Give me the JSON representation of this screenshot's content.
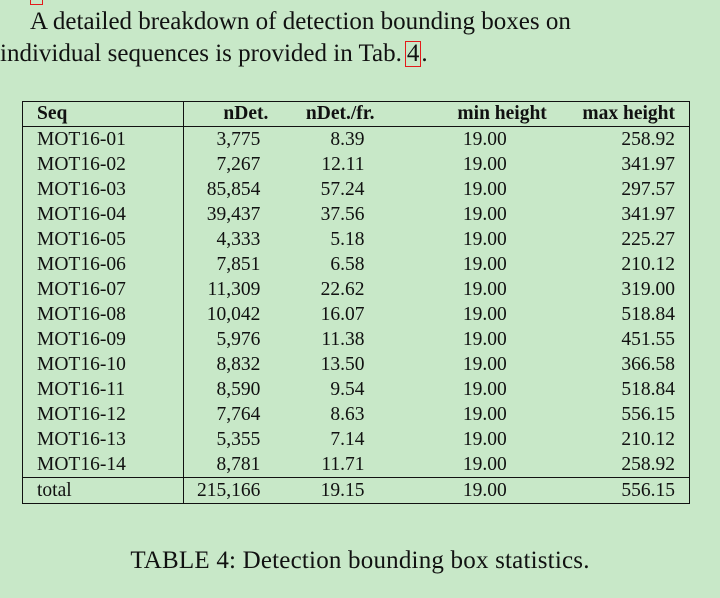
{
  "paragraph": {
    "line1": "A detailed breakdown of detection bounding boxes on",
    "line2_prefix": "individual sequences is provided in Tab.",
    "ref_label": "4",
    "line2_suffix": "."
  },
  "table": {
    "headers": [
      "Seq",
      "nDet.",
      "nDet./fr.",
      "min height",
      "max height"
    ],
    "rows": [
      [
        "MOT16-01",
        "3,775",
        "8.39",
        "19.00",
        "258.92"
      ],
      [
        "MOT16-02",
        "7,267",
        "12.11",
        "19.00",
        "341.97"
      ],
      [
        "MOT16-03",
        "85,854",
        "57.24",
        "19.00",
        "297.57"
      ],
      [
        "MOT16-04",
        "39,437",
        "37.56",
        "19.00",
        "341.97"
      ],
      [
        "MOT16-05",
        "4,333",
        "5.18",
        "19.00",
        "225.27"
      ],
      [
        "MOT16-06",
        "7,851",
        "6.58",
        "19.00",
        "210.12"
      ],
      [
        "MOT16-07",
        "11,309",
        "22.62",
        "19.00",
        "319.00"
      ],
      [
        "MOT16-08",
        "10,042",
        "16.07",
        "19.00",
        "518.84"
      ],
      [
        "MOT16-09",
        "5,976",
        "11.38",
        "19.00",
        "451.55"
      ],
      [
        "MOT16-10",
        "8,832",
        "13.50",
        "19.00",
        "366.58"
      ],
      [
        "MOT16-11",
        "8,590",
        "9.54",
        "19.00",
        "518.84"
      ],
      [
        "MOT16-12",
        "7,764",
        "8.63",
        "19.00",
        "556.15"
      ],
      [
        "MOT16-13",
        "5,355",
        "7.14",
        "19.00",
        "210.12"
      ],
      [
        "MOT16-14",
        "8,781",
        "11.71",
        "19.00",
        "258.92"
      ]
    ],
    "total": [
      "total",
      "215,166",
      "19.15",
      "19.00",
      "556.15"
    ]
  },
  "caption": "TABLE 4: Detection bounding box statistics.",
  "colors": {
    "background": "#c8e8c8",
    "link_box": "#e31b1b"
  }
}
